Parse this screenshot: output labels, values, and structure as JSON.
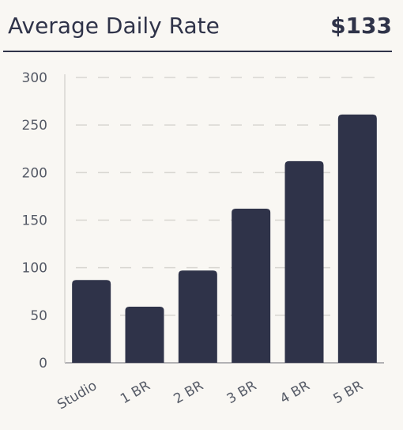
{
  "header": {
    "title": "Average Daily Rate",
    "value": "$133"
  },
  "colors": {
    "bar": "#2f3349",
    "grid": "#d8d6d1",
    "axis": "#9a9aa0"
  },
  "chart_data": {
    "type": "bar",
    "categories": [
      "Studio",
      "1 BR",
      "2 BR",
      "3 BR",
      "4 BR",
      "5 BR"
    ],
    "values": [
      87,
      59,
      97,
      162,
      212,
      261
    ],
    "ylim": [
      0,
      300
    ],
    "yticks": [
      0,
      50,
      100,
      150,
      200,
      250,
      300
    ],
    "grid": true,
    "xlabel": "",
    "ylabel": ""
  }
}
